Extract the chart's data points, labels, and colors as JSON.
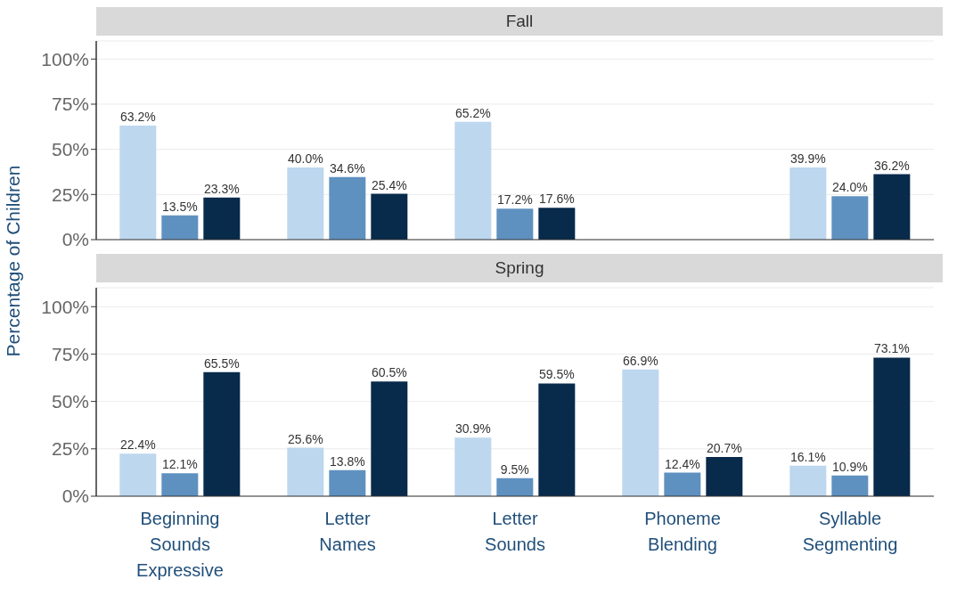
{
  "chart_data": [
    {
      "type": "bar",
      "title": "Fall",
      "ylabel": "Percentage of Children",
      "categories": [
        null,
        null,
        null,
        null,
        null
      ],
      "series": [
        {
          "color": "#bdd7ee",
          "values": [
            63.2,
            40.0,
            65.2,
            null,
            39.9
          ],
          "value_labels": [
            "63.2%",
            "40.0%",
            "65.2%",
            null,
            "39.9%"
          ]
        },
        {
          "color": "#5f91c0",
          "values": [
            13.5,
            34.6,
            17.2,
            null,
            24.0
          ],
          "value_labels": [
            "13.5%",
            "34.6%",
            "17.2%",
            null,
            "24.0%"
          ]
        },
        {
          "color": "#082a4b",
          "values": [
            23.3,
            25.4,
            17.6,
            null,
            36.2
          ],
          "value_labels": [
            "23.3%",
            "25.4%",
            "17.6%",
            null,
            "36.2%"
          ]
        }
      ],
      "ylim": [
        0,
        110
      ],
      "yticks": [
        {
          "value": 0,
          "label": "0%"
        },
        {
          "value": 25,
          "label": "25%"
        },
        {
          "value": 50,
          "label": "50%"
        },
        {
          "value": 75,
          "label": "75%"
        },
        {
          "value": 100,
          "label": "100%"
        }
      ],
      "grid": "y",
      "tick_labels": "y"
    },
    {
      "type": "bar",
      "title": "Spring",
      "categories": [
        "Beginning Sounds Expressive",
        "Letter Names",
        "Letter Sounds",
        "Phoneme Blending",
        "Syllable Segmenting"
      ],
      "series": [
        {
          "color": "#bdd7ee",
          "values": [
            22.4,
            25.6,
            30.9,
            66.9,
            16.1
          ],
          "value_labels": [
            "22.4%",
            "25.6%",
            "30.9%",
            "66.9%",
            "16.1%"
          ]
        },
        {
          "color": "#5f91c0",
          "values": [
            12.1,
            13.8,
            9.5,
            12.4,
            10.9
          ],
          "value_labels": [
            "12.1%",
            "13.8%",
            "9.5%",
            "12.4%",
            "10.9%"
          ]
        },
        {
          "color": "#082a4b",
          "values": [
            65.5,
            60.5,
            59.5,
            20.7,
            73.1
          ],
          "value_labels": [
            "65.5%",
            "60.5%",
            "59.5%",
            "20.7%",
            "73.1%"
          ]
        }
      ],
      "ylim": [
        0,
        110
      ],
      "yticks": [
        {
          "value": 0,
          "label": "0%"
        },
        {
          "value": 25,
          "label": "25%"
        },
        {
          "value": 50,
          "label": "50%"
        },
        {
          "value": 75,
          "label": "75%"
        },
        {
          "value": 100,
          "label": "100%"
        }
      ],
      "grid": "y"
    }
  ]
}
